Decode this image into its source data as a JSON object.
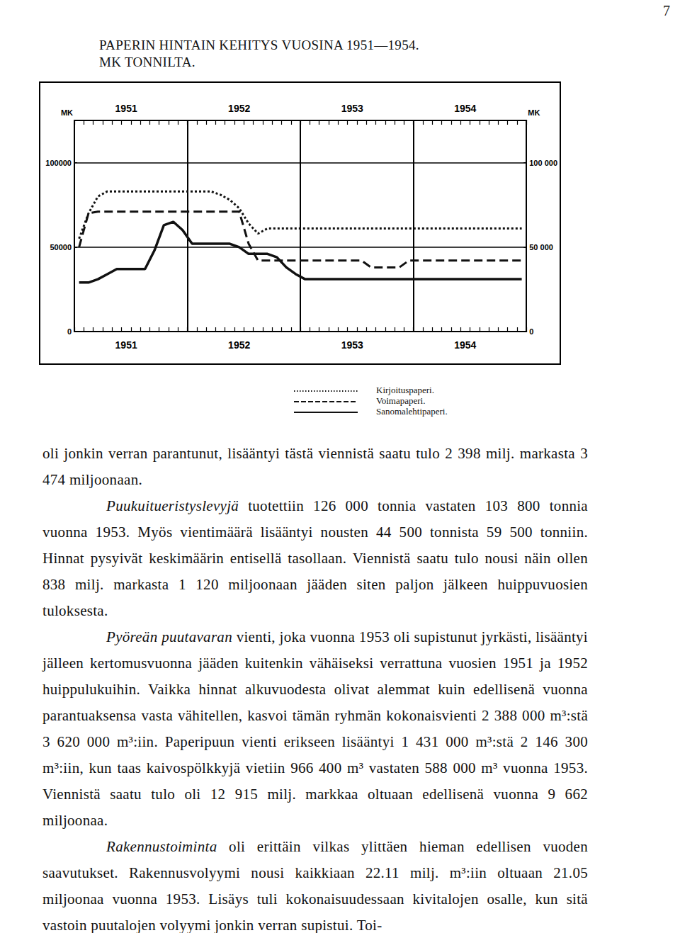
{
  "page_number": "7",
  "chart_data": {
    "type": "line",
    "title": "PAPERIN HINTAIN KEHITYS VUOSINA 1951—1954.",
    "subtitle": "MK TONNILTA.",
    "ylabel": "MK",
    "y2label": "MK",
    "categories": [
      null,
      null,
      null,
      null,
      null,
      "1951",
      null,
      null,
      null,
      null,
      null,
      null,
      null,
      null,
      null,
      null,
      null,
      "1952",
      null,
      null,
      null,
      null,
      null,
      null,
      null,
      null,
      null,
      null,
      null,
      "1953",
      null,
      null,
      null,
      null,
      null,
      null,
      null,
      null,
      null,
      null,
      null,
      "1954",
      null,
      null,
      null,
      null,
      null,
      null
    ],
    "series": [
      {
        "name": "Kirjoituspaperi.",
        "color": "#111111",
        "line_style": "dotted",
        "values": [
          55000,
          70000,
          80000,
          83000,
          83000,
          83000,
          83000,
          83000,
          83000,
          83000,
          83000,
          83000,
          83000,
          83000,
          83000,
          81000,
          78000,
          73000,
          64000,
          58000,
          61000,
          61000,
          61000,
          61000,
          61000,
          61000,
          61000,
          61000,
          61000,
          61000,
          61000,
          61000,
          61000,
          61000,
          61000,
          61000,
          61000,
          61000,
          61000,
          61000,
          61000,
          61000,
          61000,
          61000,
          61000,
          61000,
          61000,
          61000
        ]
      },
      {
        "name": "Voimapaperi.",
        "color": "#111111",
        "line_style": "dashed",
        "values": [
          50000,
          70000,
          71000,
          71000,
          71000,
          71000,
          71000,
          71000,
          71000,
          71000,
          71000,
          71000,
          71000,
          71000,
          71000,
          71000,
          71000,
          71000,
          52000,
          42000,
          42000,
          42000,
          42000,
          42000,
          42000,
          42000,
          42000,
          42000,
          42000,
          42000,
          42000,
          38000,
          38000,
          38000,
          38000,
          42000,
          42000,
          42000,
          42000,
          42000,
          42000,
          42000,
          42000,
          42000,
          42000,
          42000,
          42000,
          42000
        ]
      },
      {
        "name": "Sanomalehtipaperi.",
        "color": "#111111",
        "line_style": "solid",
        "values": [
          29000,
          29000,
          31000,
          34000,
          37000,
          37000,
          37000,
          37000,
          48000,
          63000,
          65000,
          60000,
          52000,
          52000,
          52000,
          52000,
          52000,
          50000,
          46000,
          46000,
          46000,
          44000,
          38000,
          34000,
          31000,
          31000,
          31000,
          31000,
          31000,
          31000,
          31000,
          31000,
          31000,
          31000,
          31000,
          31000,
          31000,
          31000,
          31000,
          31000,
          31000,
          31000,
          31000,
          31000,
          31000,
          31000,
          31000,
          31000
        ]
      }
    ],
    "ylim": [
      0,
      125000
    ],
    "yticks": [
      0,
      50000,
      100000
    ],
    "y2lim": [
      0,
      125000
    ],
    "y2ticks": [
      0,
      {
        "value": 50000,
        "label": "50 000"
      },
      {
        "value": 100000,
        "label": "100 000"
      }
    ],
    "grid": true,
    "legend": "bottom"
  },
  "paragraphs": [
    [
      {
        "text": "oli jonkin verran parantunut, lisääntyi tästä viennistä saatu tulo 2 398 milj. markasta 3 474 miljoonaan."
      }
    ],
    [
      {
        "text": "Puukuitueristyslevyjä",
        "italic": true
      },
      {
        "text": " tuotettiin 126 000 tonnia vastaten 103 800 tonnia vuonna 1953. Myös vientimäärä lisääntyi nousten 44 500 tonnista 59 500 tonniin. Hinnat pysyivät keskimäärin entisellä tasollaan. Viennistä saatu tulo nousi näin ollen 838 milj. markasta 1 120 miljoonaan jääden siten paljon jälkeen huippuvuosien tuloksesta."
      }
    ],
    [
      {
        "text": "Pyöreän puutavaran",
        "italic": true
      },
      {
        "text": " vienti, joka vuonna 1953 oli supistunut jyrkästi, lisääntyi jälleen kertomusvuonna jääden kuitenkin vähäiseksi verrattuna vuosien 1951 ja 1952 huippulukuihin. Vaikka hinnat alkuvuodesta olivat alemmat kuin edellisenä vuonna parantuaksensa vasta vähitellen, kasvoi tämän ryhmän kokonaisvienti 2 388 000 m³:stä 3 620 000 m³:iin. Paperipuun vienti erikseen lisääntyi 1 431 000 m³:stä 2 146 300 m³:iin, kun taas kaivospölkkyjä vietiin 966 400 m³ vastaten 588 000 m³ vuonna 1953. Viennistä saatu tulo oli 12 915 milj. markkaa oltuaan edellisenä vuonna 9 662 miljoonaa."
      }
    ],
    [
      {
        "text": "Rakennustoiminta",
        "italic": true
      },
      {
        "text": " oli erittäin vilkas ylittäen hieman edellisen vuoden saavutukset. Rakennusvolyymi nousi kaikkiaan 22.11 milj. m³:iin oltuaan 21.05 miljoonaa vuonna 1953. Lisäys tuli kokonaisuudessaan kivitalojen osalle, kun sitä vastoin puutalojen volyymi jonkin verran supistui. Toi-"
      }
    ]
  ]
}
